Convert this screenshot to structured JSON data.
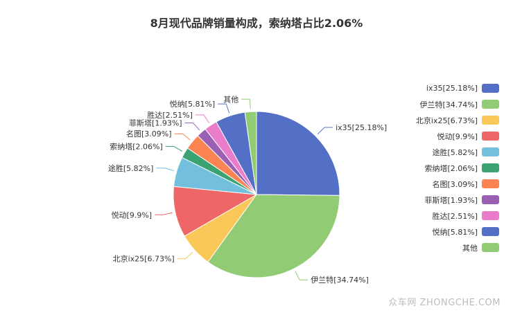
{
  "chart_data": {
    "type": "pie",
    "title": "8月现代品牌销量构成，索纳塔占比2.06%",
    "legend_position": "right",
    "slices": [
      {
        "name": "ix35",
        "value": 25.18,
        "label": "ix35[25.18%]",
        "color": "#5470c6"
      },
      {
        "name": "伊兰特",
        "value": 34.74,
        "label": "伊兰特[34.74%]",
        "color": "#91cc75"
      },
      {
        "name": "北京ix25",
        "value": 6.73,
        "label": "北京ix25[6.73%]",
        "color": "#fac858"
      },
      {
        "name": "悦动",
        "value": 9.9,
        "label": "悦动[9.9%]",
        "color": "#ee6666"
      },
      {
        "name": "途胜",
        "value": 5.82,
        "label": "途胜[5.82%]",
        "color": "#73c0de"
      },
      {
        "name": "索纳塔",
        "value": 2.06,
        "label": "索纳塔[2.06%]",
        "color": "#3ba272"
      },
      {
        "name": "名图",
        "value": 3.09,
        "label": "名图[3.09%]",
        "color": "#fc8452"
      },
      {
        "name": "菲斯塔",
        "value": 1.93,
        "label": "菲斯塔[1.93%]",
        "color": "#9a60b4"
      },
      {
        "name": "胜达",
        "value": 2.51,
        "label": "胜达[2.51%]",
        "color": "#ea7ccc"
      },
      {
        "name": "悦纳",
        "value": 5.81,
        "label": "悦纳[5.81%]",
        "color": "#5470c6"
      },
      {
        "name": "其他",
        "value": 2.23,
        "label": "其他",
        "color": "#91cc75"
      }
    ]
  },
  "watermark": "众车网 ZHONGCHE.COM"
}
